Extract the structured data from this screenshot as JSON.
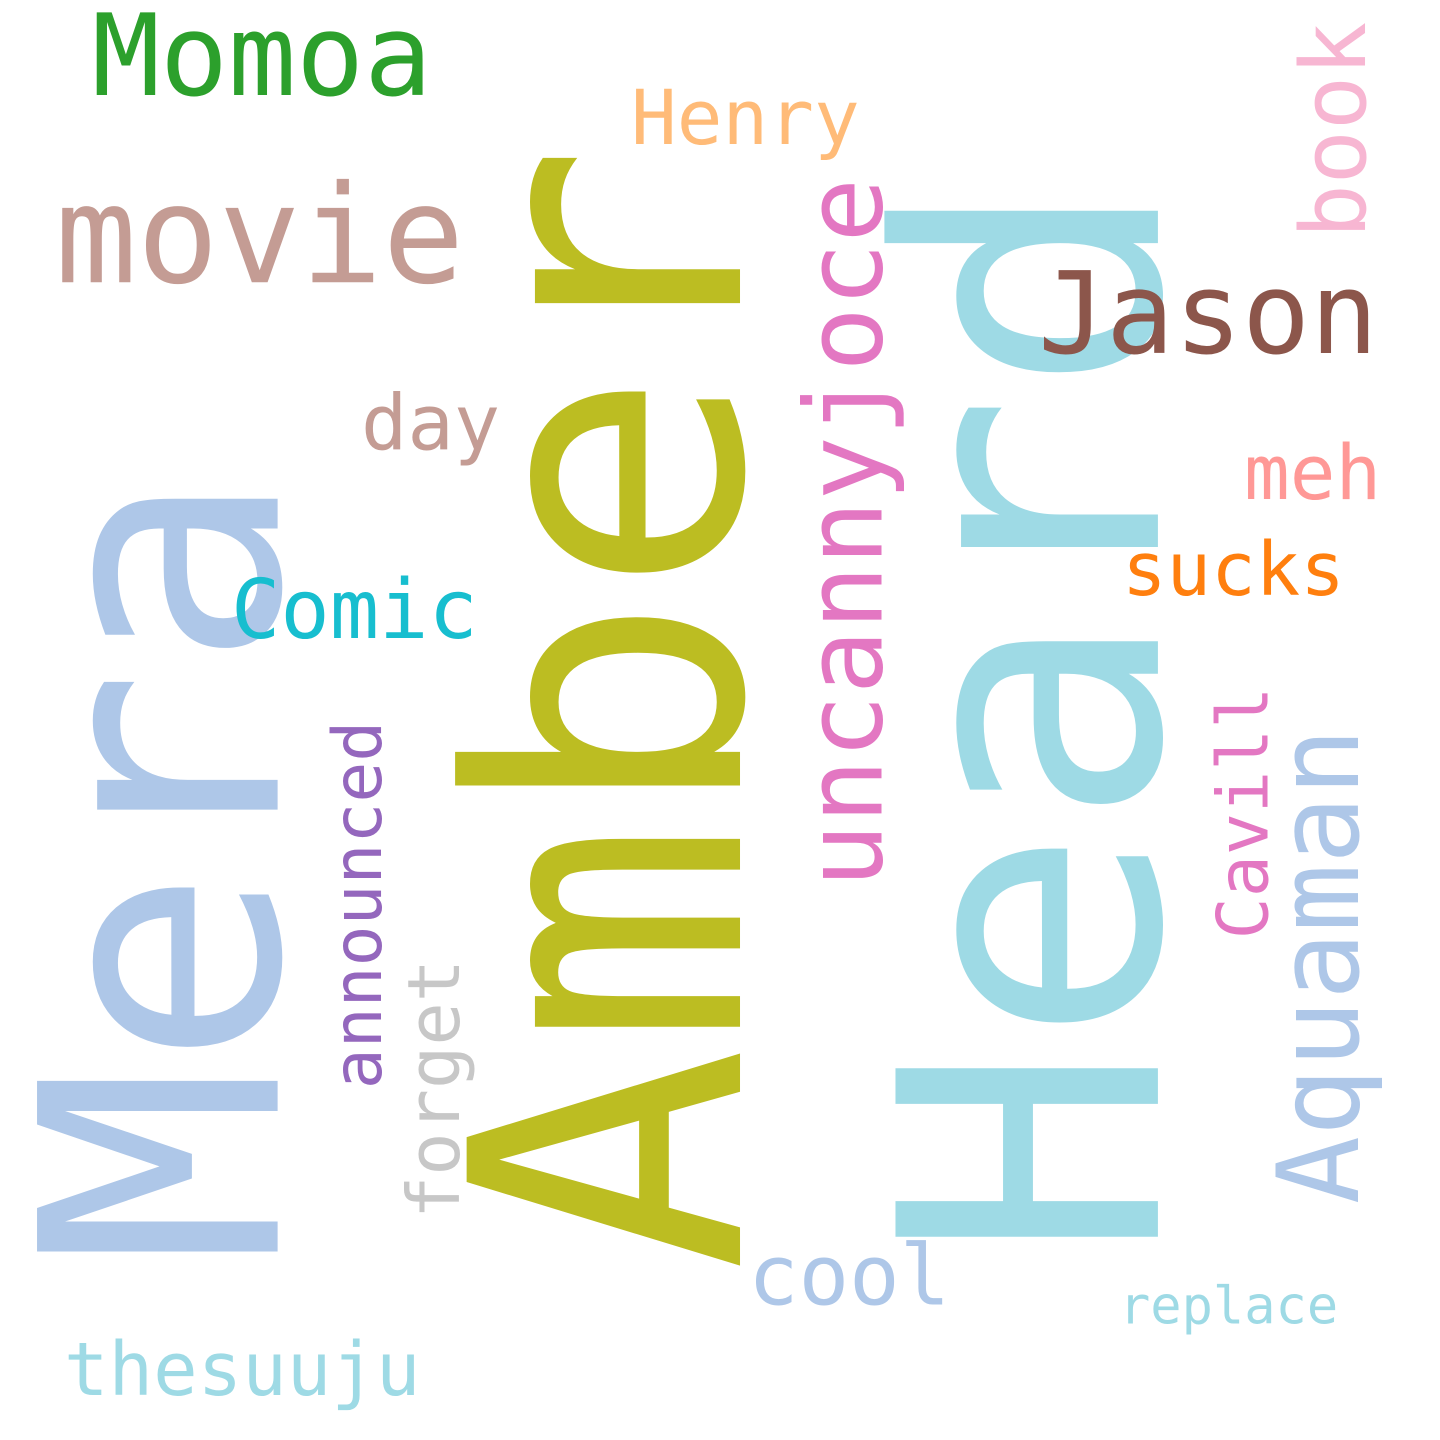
{
  "words": [
    {
      "id": "heard",
      "text": "Heard",
      "color": "#9edae5",
      "rotated": true
    },
    {
      "id": "amber",
      "text": "Amber",
      "color": "#bcbd22",
      "rotated": true
    },
    {
      "id": "mera",
      "text": "Mera",
      "color": "#aec7e8",
      "rotated": true
    },
    {
      "id": "movie",
      "text": "movie",
      "color": "#c49c94",
      "rotated": false
    },
    {
      "id": "jason",
      "text": "Jason",
      "color": "#8c564b",
      "rotated": false
    },
    {
      "id": "momoa",
      "text": "Momoa",
      "color": "#2ca02c",
      "rotated": false
    },
    {
      "id": "uncanny",
      "text": "uncannyjoce",
      "color": "#e377c2",
      "rotated": true
    },
    {
      "id": "aquaman",
      "text": "Aquaman",
      "color": "#aec7e8",
      "rotated": true
    },
    {
      "id": "henry",
      "text": "Henry",
      "color": "#ffbb78",
      "rotated": false
    },
    {
      "id": "sucks",
      "text": "sucks",
      "color": "#ff7f0e",
      "rotated": false
    },
    {
      "id": "comic",
      "text": "Comic",
      "color": "#17becf",
      "rotated": false
    },
    {
      "id": "book",
      "text": "book",
      "color": "#f7b6d2",
      "rotated": true
    },
    {
      "id": "meh",
      "text": "meh",
      "color": "#ff9896",
      "rotated": false
    },
    {
      "id": "announced",
      "text": "announced",
      "color": "#9467bd",
      "rotated": true
    },
    {
      "id": "cool",
      "text": "cool",
      "color": "#aec7e8",
      "rotated": false
    },
    {
      "id": "cavill",
      "text": "Cavill",
      "color": "#e377c2",
      "rotated": true
    },
    {
      "id": "day",
      "text": "day",
      "color": "#c49c94",
      "rotated": false
    },
    {
      "id": "forget",
      "text": "forget",
      "color": "#c7c7c7",
      "rotated": true
    },
    {
      "id": "replace",
      "text": "replace",
      "color": "#9edae5",
      "rotated": false
    },
    {
      "id": "thesuuju",
      "text": "thesuuju",
      "color": "#9edae5",
      "rotated": false
    }
  ]
}
